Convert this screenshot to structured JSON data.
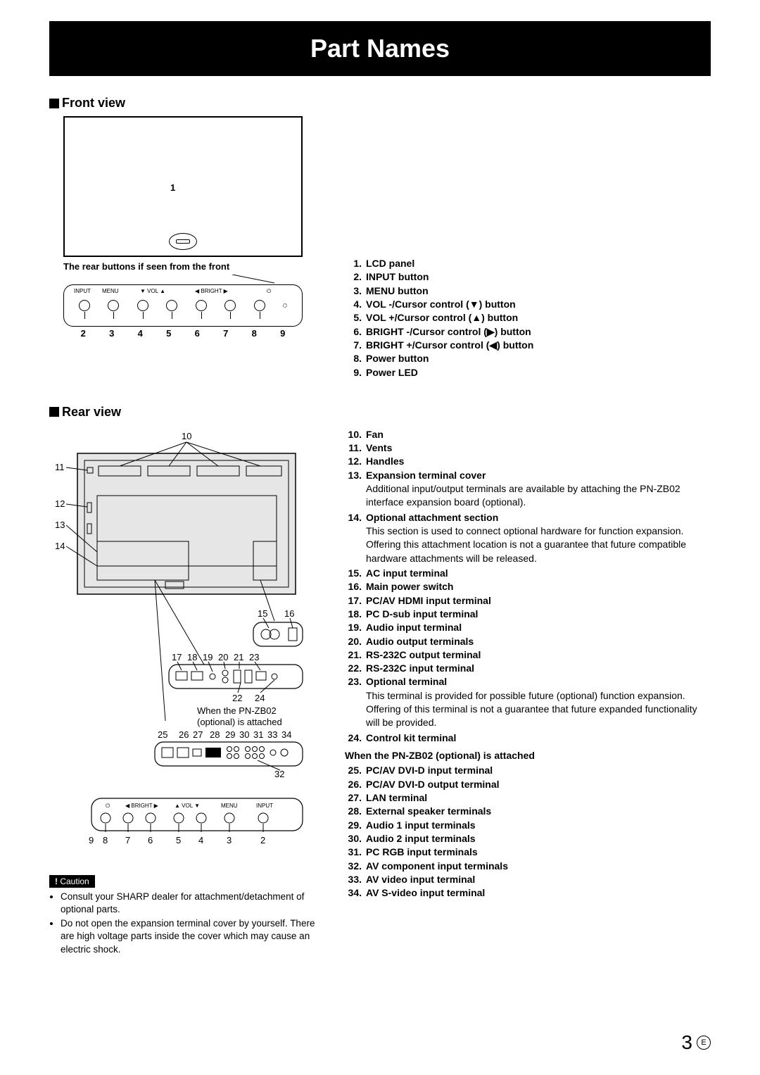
{
  "title": "Part Names",
  "frontView": {
    "heading": "Front view",
    "callout1": "1",
    "note": "The rear buttons if seen from the front",
    "buttonLabels": [
      "INPUT",
      "MENU",
      "VOL",
      "VOL",
      "BRIGHT",
      "BRIGHT",
      ""
    ],
    "buttonArrows": [
      "",
      "",
      "▼",
      "▲",
      "◀",
      "▶",
      "⏻"
    ],
    "bottomNums": [
      "2",
      "3",
      "4",
      "5",
      "6",
      "7",
      "8",
      "9"
    ]
  },
  "frontLegend": [
    {
      "n": "1.",
      "t": "LCD panel"
    },
    {
      "n": "2.",
      "t": "INPUT button"
    },
    {
      "n": "3.",
      "t": "MENU button"
    },
    {
      "n": "4.",
      "t": "VOL -/Cursor control (▼) button"
    },
    {
      "n": "5.",
      "t": "VOL +/Cursor control (▲) button"
    },
    {
      "n": "6.",
      "t": "BRIGHT -/Cursor control (▶) button"
    },
    {
      "n": "7.",
      "t": "BRIGHT +/Cursor control (◀) button"
    },
    {
      "n": "8.",
      "t": "Power button"
    },
    {
      "n": "9.",
      "t": "Power LED"
    }
  ],
  "rearView": {
    "heading": "Rear view",
    "attachedNote": "When the PN-ZB02 (optional) is attached"
  },
  "rearLegend1": [
    {
      "n": "10.",
      "t": "Fan"
    },
    {
      "n": "11.",
      "t": "Vents"
    },
    {
      "n": "12.",
      "t": "Handles"
    },
    {
      "n": "13.",
      "t": "Expansion terminal cover",
      "d": "Additional input/output terminals are available by attaching the PN-ZB02 interface expansion board (optional)."
    },
    {
      "n": "14.",
      "t": "Optional attachment section",
      "d": "This section is used to connect optional hardware for function expansion. Offering this attachment location is not a guarantee that future compatible hardware attachments will be released."
    },
    {
      "n": "15.",
      "t": "AC input terminal"
    },
    {
      "n": "16.",
      "t": "Main power switch"
    },
    {
      "n": "17.",
      "t": "PC/AV HDMI input terminal"
    },
    {
      "n": "18.",
      "t": "PC D-sub input terminal"
    },
    {
      "n": "19.",
      "t": "Audio input terminal"
    },
    {
      "n": "20.",
      "t": "Audio output terminals"
    },
    {
      "n": "21.",
      "t": "RS-232C output terminal"
    },
    {
      "n": "22.",
      "t": "RS-232C input terminal"
    },
    {
      "n": "23.",
      "t": "Optional terminal",
      "d": "This terminal is provided for possible future (optional) function expansion. Offering of this terminal is not a guarantee that future expanded functionality will be provided."
    },
    {
      "n": "24.",
      "t": "Control kit terminal"
    }
  ],
  "rearSubhead": "When the PN-ZB02 (optional) is attached",
  "rearLegend2": [
    {
      "n": "25.",
      "t": "PC/AV DVI-D input terminal"
    },
    {
      "n": "26.",
      "t": "PC/AV DVI-D output terminal"
    },
    {
      "n": "27.",
      "t": "LAN terminal"
    },
    {
      "n": "28.",
      "t": "External speaker terminals"
    },
    {
      "n": "29.",
      "t": "Audio 1 input terminals"
    },
    {
      "n": "30.",
      "t": "Audio 2 input terminals"
    },
    {
      "n": "31.",
      "t": "PC RGB input terminals"
    },
    {
      "n": "32.",
      "t": "AV component input terminals"
    },
    {
      "n": "33.",
      "t": "AV video input terminal"
    },
    {
      "n": "34.",
      "t": "AV S-video input terminal"
    }
  ],
  "cautionLabel": "Caution",
  "cautionBullets": [
    "Consult your SHARP dealer for attachment/detachment of optional parts.",
    "Do not open the expansion terminal cover by yourself. There are high voltage parts inside the cover which may cause an electric shock."
  ],
  "pageNum": "3",
  "pageMark": "E",
  "colors": {
    "black": "#000000",
    "white": "#ffffff",
    "gray": "#e6e6e6"
  }
}
